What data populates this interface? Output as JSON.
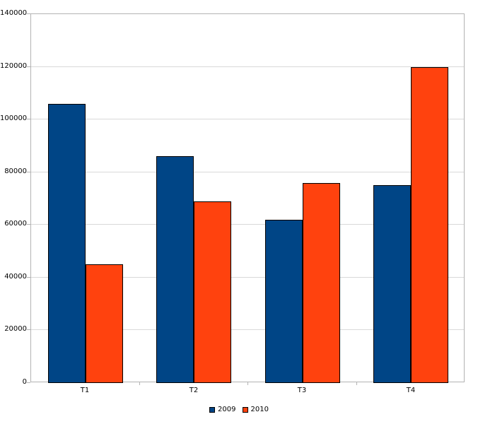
{
  "chart_data": {
    "type": "bar",
    "categories": [
      "T1",
      "T2",
      "T3",
      "T4"
    ],
    "series": [
      {
        "name": "2009",
        "color": "#004586",
        "values": [
          106000,
          86000,
          62000,
          75000
        ]
      },
      {
        "name": "2010",
        "color": "#ff420e",
        "values": [
          45000,
          69000,
          76000,
          120000
        ]
      }
    ],
    "ylim": [
      0,
      140000
    ],
    "ytick_step": 20000,
    "ytick_labels": [
      "0",
      "20000",
      "40000",
      "60000",
      "80000",
      "100000",
      "120000",
      "140000"
    ],
    "grid": "horizontal",
    "legend_position": "bottom"
  },
  "colors": {
    "background": "#ffffff",
    "plot_border": "#b3b3b3",
    "gridline": "#d9d9d9",
    "bar_border": "#000000",
    "text": "#000000"
  }
}
